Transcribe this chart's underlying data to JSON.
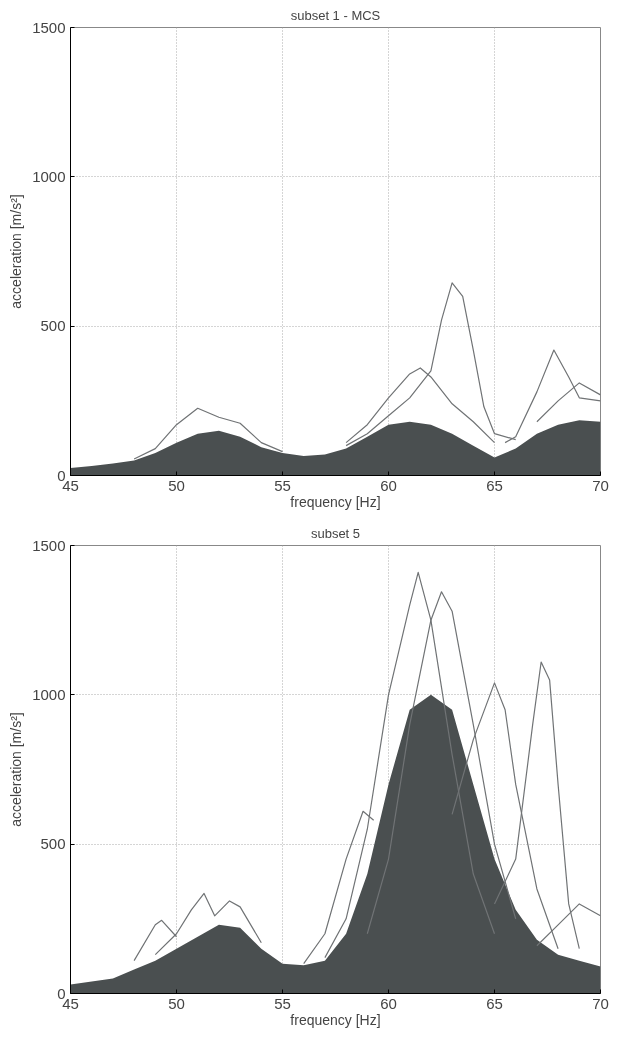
{
  "chart_data": [
    {
      "type": "line",
      "title": "subset 1 - MCS",
      "xlabel": "frequency [Hz]",
      "ylabel": "acceleration [m/s²]",
      "xlim": [
        45,
        70
      ],
      "ylim": [
        0,
        1500
      ],
      "xticks": [
        45,
        50,
        55,
        60,
        65,
        70
      ],
      "yticks": [
        0,
        500,
        1000,
        1500
      ],
      "grid": true,
      "series": [
        {
          "type": "area",
          "color": "#4a4f50",
          "x": [
            45,
            46,
            47,
            48,
            49,
            50,
            51,
            52,
            53,
            54,
            55,
            56,
            57,
            58,
            59,
            60,
            61,
            62,
            63,
            64,
            65,
            66,
            67,
            68,
            69,
            70
          ],
          "values": [
            25,
            32,
            40,
            50,
            75,
            110,
            140,
            150,
            130,
            95,
            75,
            65,
            70,
            90,
            130,
            170,
            180,
            170,
            140,
            100,
            60,
            90,
            140,
            170,
            185,
            180
          ]
        },
        {
          "color": "#707375",
          "x": [
            58,
            59,
            60,
            61,
            62,
            62.5,
            63,
            63.5,
            64,
            64.5,
            65,
            66
          ],
          "values": [
            100,
            140,
            200,
            260,
            350,
            520,
            645,
            600,
            420,
            230,
            140,
            120
          ]
        },
        {
          "color": "#707375",
          "x": [
            65.5,
            66,
            67,
            67.8,
            68.5,
            69,
            70
          ],
          "values": [
            110,
            130,
            280,
            420,
            330,
            260,
            250
          ]
        },
        {
          "color": "#707375",
          "x": [
            58,
            59,
            60,
            61,
            61.5,
            62,
            63,
            64,
            65
          ],
          "values": [
            110,
            170,
            260,
            340,
            360,
            330,
            240,
            180,
            110
          ]
        },
        {
          "color": "#707375",
          "x": [
            48,
            49,
            50,
            51,
            52,
            53,
            54,
            55
          ],
          "values": [
            55,
            90,
            170,
            225,
            195,
            175,
            110,
            80
          ]
        },
        {
          "color": "#707375",
          "x": [
            67,
            68,
            69,
            70
          ],
          "values": [
            180,
            250,
            310,
            270
          ]
        }
      ]
    },
    {
      "type": "line",
      "title": "subset 5",
      "xlabel": "frequency [Hz]",
      "ylabel": "acceleration [m/s²]",
      "xlim": [
        45,
        70
      ],
      "ylim": [
        0,
        1500
      ],
      "xticks": [
        45,
        50,
        55,
        60,
        65,
        70
      ],
      "yticks": [
        0,
        500,
        1000,
        1500
      ],
      "grid": true,
      "series": [
        {
          "type": "area",
          "color": "#4a4f50",
          "x": [
            45,
            46,
            47,
            48,
            49,
            50,
            51,
            52,
            53,
            54,
            55,
            56,
            57,
            58,
            59,
            60,
            61,
            62,
            63,
            64,
            65,
            66,
            67,
            68,
            69,
            70
          ],
          "values": [
            30,
            40,
            50,
            80,
            110,
            150,
            190,
            230,
            220,
            150,
            100,
            95,
            110,
            200,
            400,
            700,
            950,
            1000,
            950,
            700,
            450,
            280,
            180,
            130,
            110,
            90
          ]
        },
        {
          "color": "#707375",
          "x": [
            57,
            58,
            59,
            60,
            61,
            61.4,
            62,
            63,
            64,
            65
          ],
          "values": [
            120,
            250,
            550,
            1000,
            1300,
            1410,
            1250,
            800,
            400,
            200
          ]
        },
        {
          "color": "#707375",
          "x": [
            59,
            60,
            61,
            62,
            62.5,
            63,
            64,
            65,
            66
          ],
          "values": [
            200,
            450,
            900,
            1250,
            1345,
            1280,
            900,
            500,
            250
          ]
        },
        {
          "color": "#707375",
          "x": [
            65,
            66,
            66.8,
            67.2,
            67.6,
            68,
            68.5,
            69
          ],
          "values": [
            300,
            450,
            900,
            1110,
            1050,
            700,
            300,
            150
          ]
        },
        {
          "color": "#707375",
          "x": [
            63,
            64,
            65,
            65.5,
            66,
            67,
            68
          ],
          "values": [
            600,
            850,
            1040,
            950,
            700,
            350,
            150
          ]
        },
        {
          "color": "#707375",
          "x": [
            56,
            57,
            58,
            58.8,
            59.3
          ],
          "values": [
            100,
            200,
            450,
            610,
            580
          ]
        },
        {
          "color": "#707375",
          "x": [
            49,
            50,
            50.7,
            51.3,
            51.8,
            52.5,
            53,
            54
          ],
          "values": [
            130,
            200,
            280,
            335,
            260,
            310,
            290,
            170
          ]
        },
        {
          "color": "#707375",
          "x": [
            48,
            49,
            49.3,
            50
          ],
          "values": [
            110,
            230,
            245,
            190
          ]
        },
        {
          "color": "#707375",
          "x": [
            67,
            68,
            69,
            70
          ],
          "values": [
            160,
            230,
            300,
            260
          ]
        }
      ]
    }
  ]
}
